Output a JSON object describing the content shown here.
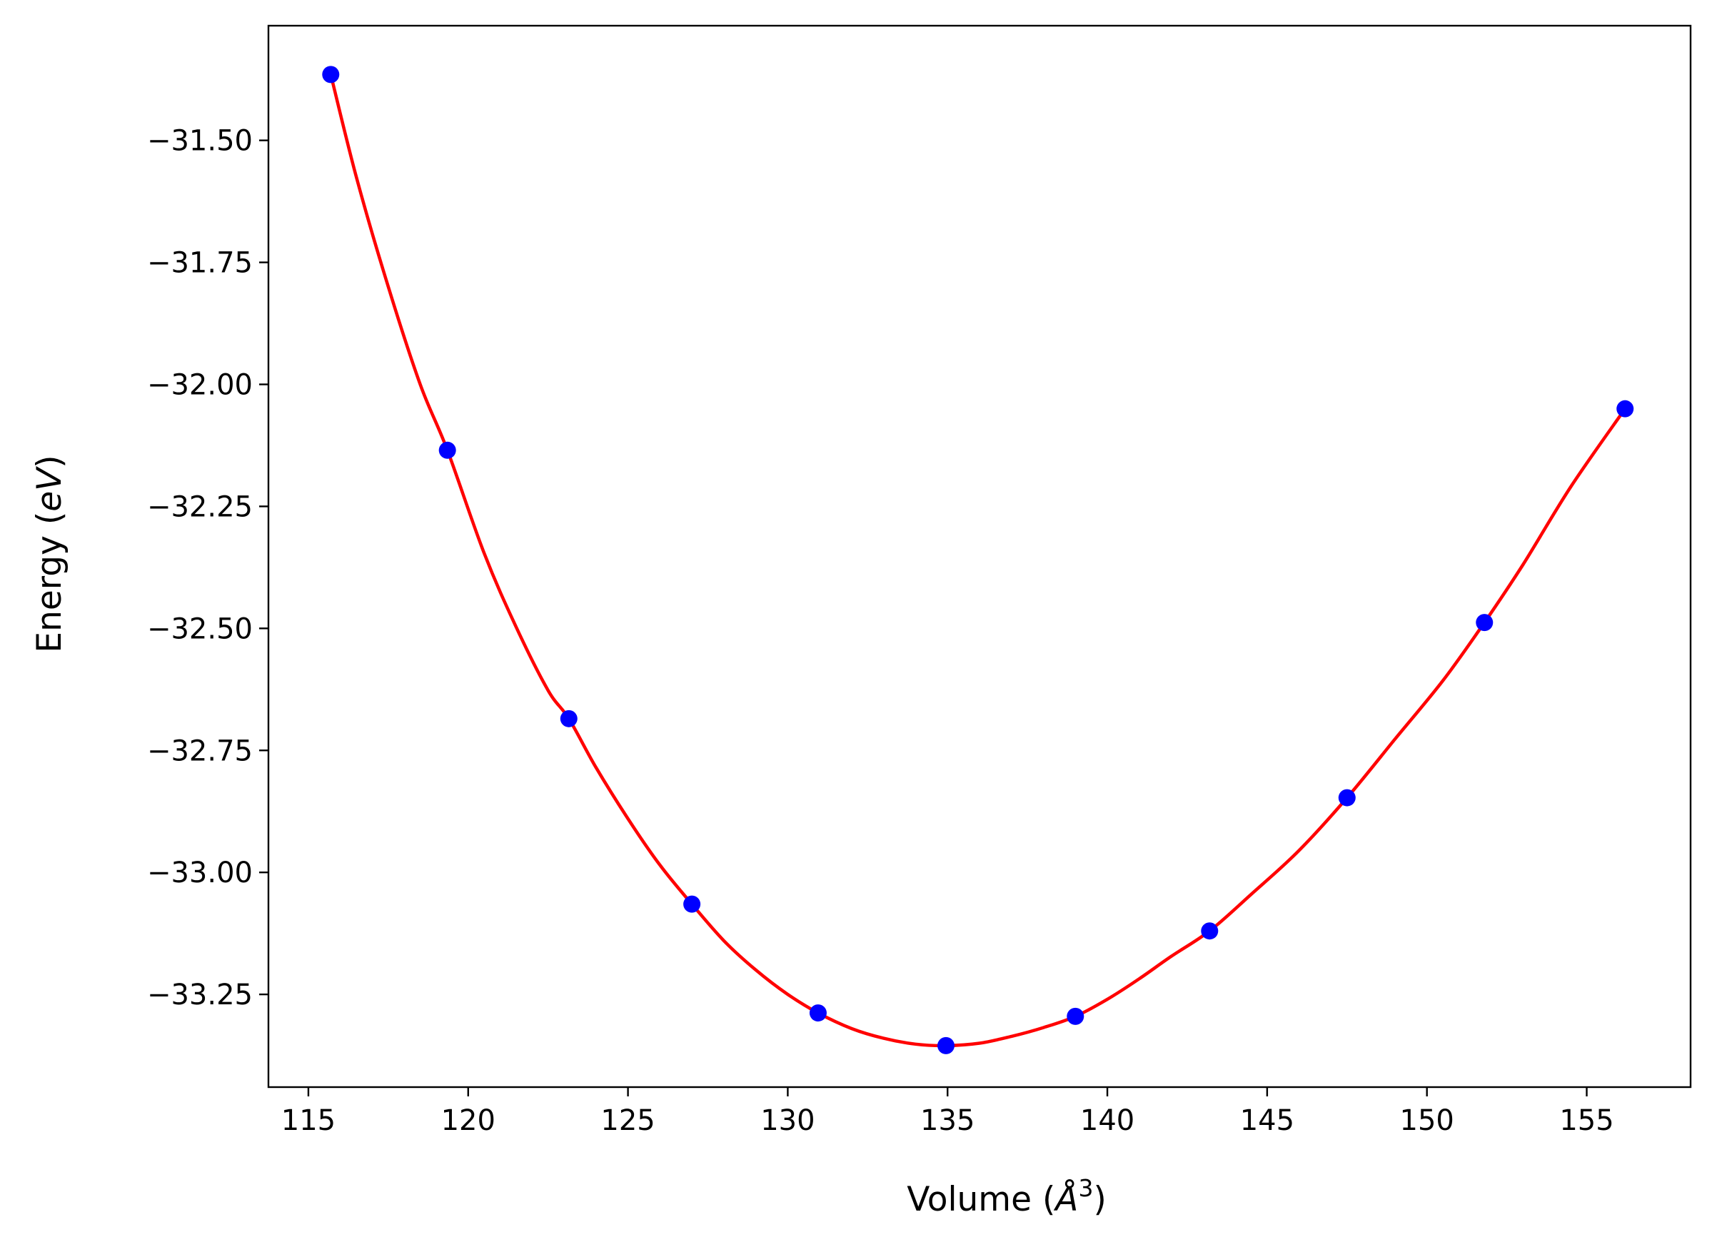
{
  "chart_data": {
    "type": "scatter",
    "title": "",
    "xlabel": {
      "prefix": "Volume (",
      "math": "Å",
      "sup": "3",
      "suffix": ")"
    },
    "ylabel": {
      "prefix": "Energy (",
      "math": "eV",
      "suffix": ")"
    },
    "xlim": [
      113.75,
      158.25
    ],
    "ylim": [
      -33.44,
      -31.265
    ],
    "xticks": [
      115,
      120,
      125,
      130,
      135,
      140,
      145,
      150,
      155
    ],
    "xtick_labels": [
      "115",
      "120",
      "125",
      "130",
      "135",
      "140",
      "145",
      "150",
      "155"
    ],
    "yticks": [
      -31.5,
      -31.75,
      -32.0,
      -32.25,
      -32.5,
      -32.75,
      -33.0,
      -33.25
    ],
    "ytick_labels": [
      "−31.50",
      "−31.75",
      "−32.00",
      "−32.25",
      "−32.50",
      "−32.75",
      "−33.00",
      "−33.25"
    ],
    "grid": false,
    "series": [
      {
        "kind": "points",
        "color": "#0000ff",
        "x": [
          115.7,
          119.35,
          123.15,
          127.0,
          130.95,
          134.95,
          139.0,
          143.2,
          147.5,
          151.8,
          156.2
        ],
        "y": [
          -31.365,
          -32.135,
          -32.685,
          -33.065,
          -33.288,
          -33.355,
          -33.295,
          -33.12,
          -32.847,
          -32.488,
          -32.05
        ]
      },
      {
        "kind": "fit-curve",
        "color": "#ff0000",
        "x": [
          115.7,
          116.5,
          117.5,
          118.5,
          119.35,
          120.5,
          121.5,
          122.5,
          123.15,
          124.0,
          125.0,
          126.0,
          127.0,
          128.0,
          129.0,
          130.0,
          130.95,
          132.0,
          133.0,
          134.0,
          134.95,
          136.0,
          137.0,
          138.0,
          139.0,
          140.0,
          141.0,
          142.0,
          143.2,
          144.5,
          146.0,
          147.5,
          149.0,
          150.5,
          151.8,
          153.0,
          154.5,
          156.2
        ],
        "y": [
          -31.365,
          -31.575,
          -31.8,
          -32.0,
          -32.135,
          -32.346,
          -32.497,
          -32.627,
          -32.685,
          -32.785,
          -32.89,
          -32.985,
          -33.065,
          -33.14,
          -33.2,
          -33.25,
          -33.288,
          -33.32,
          -33.34,
          -33.352,
          -33.355,
          -33.35,
          -33.336,
          -33.318,
          -33.295,
          -33.26,
          -33.218,
          -33.172,
          -33.12,
          -33.045,
          -32.955,
          -32.847,
          -32.727,
          -32.607,
          -32.488,
          -32.37,
          -32.21,
          -32.05
        ]
      }
    ]
  }
}
